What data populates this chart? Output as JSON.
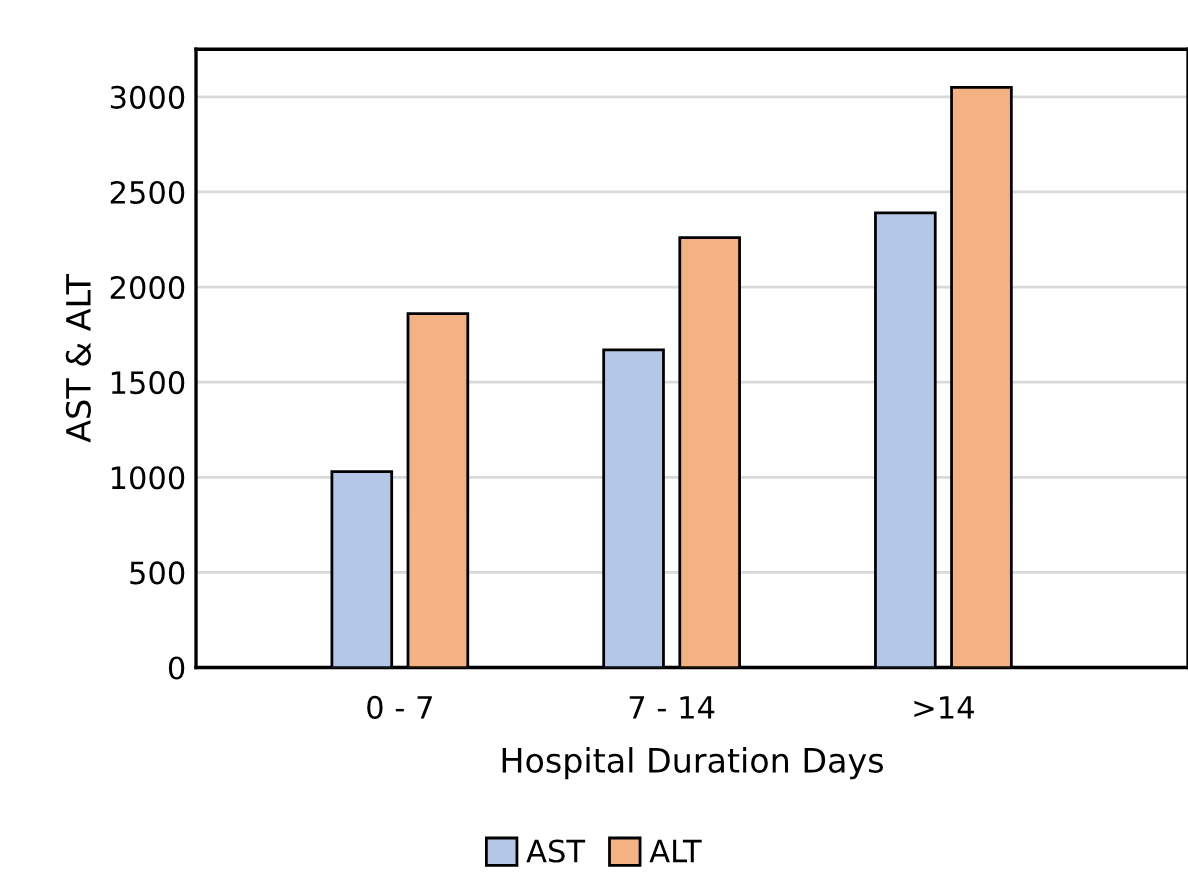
{
  "chart_data": {
    "type": "bar",
    "xlabel": "Hospital Duration Days",
    "ylabel": "AST & ALT",
    "categories": [
      "0 - 7",
      "7 - 14",
      ">14"
    ],
    "series": [
      {
        "name": "AST",
        "color": "#b4c7e7",
        "values": [
          1030,
          1670,
          2390
        ]
      },
      {
        "name": "ALT",
        "color": "#f4b183",
        "values": [
          1860,
          2260,
          3050
        ]
      }
    ],
    "ylim": [
      0,
      3250
    ],
    "yticks": [
      0,
      500,
      1000,
      1500,
      2000,
      2500,
      3000
    ],
    "grid": "y",
    "legend": "bottom"
  }
}
